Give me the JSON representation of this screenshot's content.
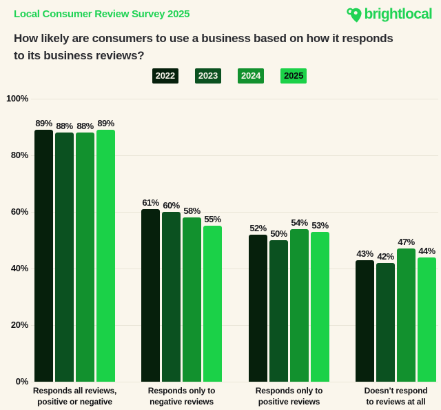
{
  "header": {
    "title": "Local Consumer Review Survey 2025",
    "logo_text": "brightlocal"
  },
  "question": "How likely are consumers to use a business based on how it responds\nto its business reviews?",
  "colors": {
    "background": "#FAF6EC",
    "brand_green": "#20D355",
    "question_text": "#2A2B30",
    "grid_line": "#EAE6D8",
    "axis_label": "#101114",
    "value_label": "#17181C"
  },
  "chart_data": {
    "type": "bar",
    "title": "How likely are consumers to use a business based on how it responds to its business reviews?",
    "categories": [
      "Responds all reviews,\npositive or negative",
      "Responds only to\nnegative reviews",
      "Responds only to\npositive reviews",
      "Doesn’t respond\nto reviews at all"
    ],
    "series": [
      {
        "name": "2022",
        "color": "#06200C",
        "legend_text_color": "#F7F4EA",
        "values": [
          89,
          61,
          52,
          43
        ]
      },
      {
        "name": "2023",
        "color": "#0B5120",
        "legend_text_color": "#F7F4EA",
        "values": [
          88,
          60,
          50,
          42
        ]
      },
      {
        "name": "2024",
        "color": "#12912E",
        "legend_text_color": "#F7F4EA",
        "values": [
          88,
          58,
          54,
          47
        ]
      },
      {
        "name": "2025",
        "color": "#1BD148",
        "legend_text_color": "#0A0C0E",
        "values": [
          89,
          55,
          53,
          44
        ]
      }
    ],
    "value_label_suffix": "%",
    "xlabel": "",
    "ylabel": "",
    "ylim": [
      0,
      100
    ],
    "yticks": [
      0,
      20,
      40,
      60,
      80,
      100
    ],
    "ytick_labels": [
      "0%",
      "20%",
      "40%",
      "60%",
      "80%",
      "100%"
    ],
    "grid": true,
    "legend_position": "top"
  }
}
